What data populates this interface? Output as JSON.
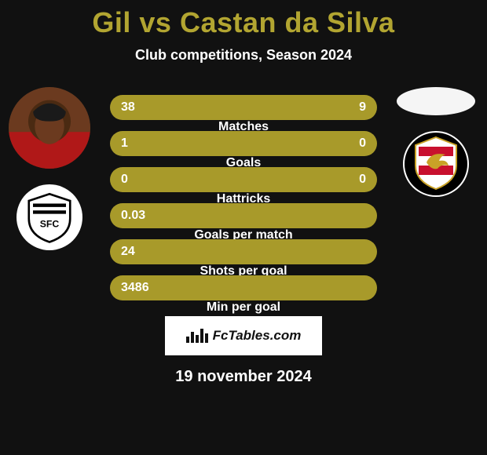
{
  "title": "Gil vs Castan da Silva",
  "subtitle": "Club competitions, Season 2024",
  "title_color": "#b2a531",
  "stats": {
    "bar_color": "#a89a2a",
    "text_color": "#ffffff",
    "font_size": 16,
    "rows": [
      {
        "left": "38",
        "label": "Matches",
        "right": "9"
      },
      {
        "left": "1",
        "label": "Goals",
        "right": "0"
      },
      {
        "left": "0",
        "label": "Hattricks",
        "right": "0"
      },
      {
        "left": "0.03",
        "label": "Goals per match",
        "right": ""
      },
      {
        "left": "24",
        "label": "Shots per goal",
        "right": ""
      },
      {
        "left": "3486",
        "label": "Min per goal",
        "right": ""
      }
    ]
  },
  "watermark": "FcTables.com",
  "date": "19 november 2024",
  "left": {
    "player_name": "Gil",
    "club_name": "Santos FC"
  },
  "right": {
    "player_name": "Castan da Silva",
    "club_name": "Sport Recife"
  },
  "colors": {
    "background": "#111111",
    "text": "#ffffff",
    "accent": "#b2a531"
  }
}
